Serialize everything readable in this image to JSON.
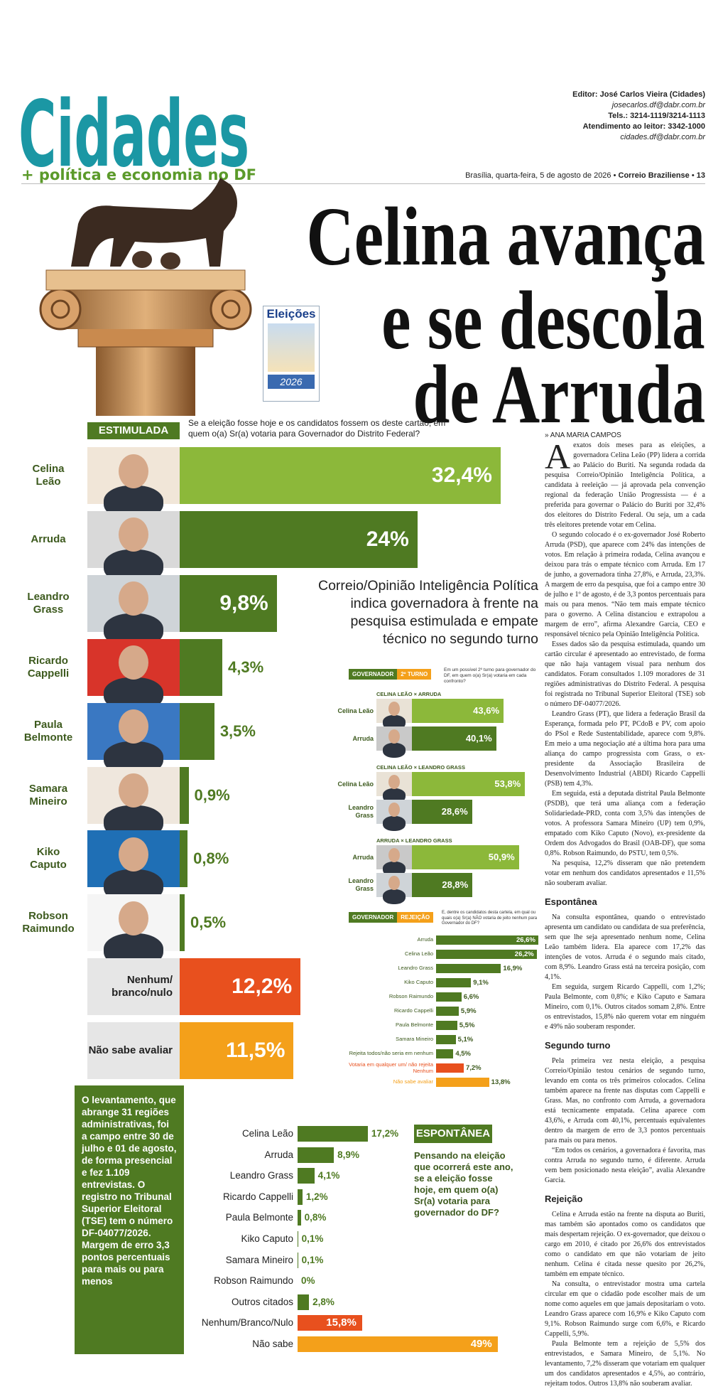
{
  "header": {
    "section": "Cidades",
    "tagline": "+ política e economia no DF",
    "editor": "Editor: José Carlos Vieira (Cidades)",
    "editor_email": "josecarlos.df@dabr.com.br",
    "phones": "Tels.: 3214-1119/3214-1113",
    "reader_service": "Atendimento ao leitor: 3342-1000",
    "contact_email": "cidades.df@dabr.com.br",
    "date": "Brasília, quarta-feira, 5 de agosto de 2026",
    "newspaper": "Correio Braziliense",
    "page": "13"
  },
  "headline": [
    "Celina avança",
    "e se descola",
    "de Arruda"
  ],
  "badge": {
    "title": "Eleições",
    "year": "2026"
  },
  "byline": "» ANA MARIA CAMPOS",
  "article": {
    "paragraphs": [
      "A exatos dois meses para as eleições, a governadora Celina Leão (PP) lidera a corrida ao Palácio do Buriti. Na segunda rodada da pesquisa Correio/Opinião Inteligência Política, a candidata à reeleição — já aprovada pela convenção regional da federação União Progressista — é a preferida para governar o Palácio do Buriti por 32,4% dos eleitores do Distrito Federal. Ou seja, um a cada três eleitores pretende votar em Celina.",
      "O segundo colocado é o ex-governador José Roberto Arruda (PSD), que aparece com 24% das intenções de votos. Em relação à primeira rodada, Celina avançou e deixou para trás o empate técnico com Arruda. Em 17 de junho, a governadora tinha 27,8%, e Arruda, 23,3%. A margem de erro da pesquisa, que foi a campo entre 30 de julho e 1º de agosto, é de 3,3 pontos percentuais para mais ou para menos. “Não tem mais empate técnico para o governo. A Celina distanciou e extrapolou a margem de erro”, afirma Alexandre Garcia, CEO e responsável técnico pela Opinião Inteligência Política.",
      "Esses dados são da pesquisa estimulada, quando um cartão circular é apresentado ao entrevistado, de forma que não haja vantagem visual para nenhum dos candidatos. Foram consultados 1.109 moradores de 31 regiões administrativas do Distrito Federal. A pesquisa foi registrada no Tribunal Superior Eleitoral (TSE) sob o número DF-04077/2026.",
      "Leandro Grass (PT), que lidera a federação Brasil da Esperança, formada pelo PT, PCdoB e PV, com apoio do PSol e Rede Sustentabilidade, aparece com 9,8%. Em meio a uma negociação até a última hora para uma aliança do campo progressista com Grass, o ex-presidente da Associação Brasileira de Desenvolvimento Industrial (ABDI) Ricardo Cappelli (PSB) tem 4,3%.",
      "Em seguida, está a deputada distrital Paula Belmonte (PSDB), que terá uma aliança com a federação Solidariedade-PRD, conta com 3,5% das intenções de votos. A professora Samara Mineiro (UP) tem 0,9%, empatado com Kiko Caputo (Novo), ex-presidente da Ordem dos Advogados do Brasil (OAB-DF), que soma 0,8%. Robson Raimundo, do PSTU, tem 0,5%.",
      "Na pesquisa, 12,2% disseram que não pretendem votar em nenhum dos candidatos apresentados e 11,5% não souberam avaliar."
    ],
    "sections": [
      {
        "heading": "Espontânea",
        "paragraphs": [
          "Na consulta espontânea, quando o entrevistado apresenta um candidato ou candidata de sua preferência, sem que lhe seja apresentado nenhum nome, Celina Leão também lidera. Ela aparece com 17,2% das intenções de votos. Arruda é o segundo mais citado, com 8,9%. Leandro Grass está na terceira posição, com 4,1%.",
          "Em seguida, surgem Ricardo Cappelli, com 1,2%; Paula Belmonte, com 0,8%; e Kiko Caputo e Samara Mineiro, com 0,1%. Outros citados somam 2,8%. Entre os entrevistados, 15,8% não querem votar em ninguém e 49% não souberam responder."
        ]
      },
      {
        "heading": "Segundo turno",
        "paragraphs": [
          "Pela primeira vez nesta eleição, a pesquisa Correio/Opinião testou cenários de segundo turno, levando em conta os três primeiros colocados. Celina também aparece na frente nas disputas com Cappelli e Grass. Mas, no confronto com Arruda, a governadora está tecnicamente empatada. Celina aparece com 43,6%, e Arruda com 40,1%, percentuais equivalentes dentro da margem de erro de 3,3 pontos percentuais para mais ou para menos.",
          "“Em todos os cenários, a governadora é favorita, mas contra Arruda no segundo turno, é diferente. Arruda vem bem posicionado nesta eleição”, avalia Alexandre Garcia."
        ]
      },
      {
        "heading": "Rejeição",
        "paragraphs": [
          "Celina e Arruda estão na frente na disputa ao Buriti, mas também são apontados como os candidatos que mais despertam rejeição. O ex-governador, que deixou o cargo em 2010, é citado por 26,6% dos entrevistados como o candidato em que não votariam de jeito nenhum. Celina é citada nesse quesito por 26,2%, também em empate técnico.",
          "Na consulta, o entrevistador mostra uma cartela circular em que o cidadão pode escolher mais de um nome como aqueles em que jamais depositariam o voto. Leandro Grass aparece com 16,9% e Kiko Caputo com 9,1%. Robson Raimundo surge com 6,6%, e Ricardo Cappelli, 5,9%.",
          "Paula Belmonte tem a rejeição de 5,5% dos entrevistados, e Samara Mineiro, de 5,1%. No levantamento, 7,2% disseram que votariam em qualquer um dos candidatos apresentados e 4,5%, ao contrário, rejeitam todos. Outros 13,8% não souberam avaliar."
        ]
      }
    ]
  },
  "methodology": "O levantamento, que abrange 31 regiões administrativas, foi a campo entre 30 de julho e 01 de agosto, de forma presencial e fez 1.109 entrevistas. O registro no Tribunal Superior Eleitoral (TSE) tem o número DF-04077/2026. Margem de erro 3,3 pontos percentuais para mais ou para menos",
  "chart_data": [
    {
      "type": "bar",
      "orientation": "horizontal",
      "title": "ESTIMULADA",
      "subtitle": "Se a eleição fosse hoje e os candidatos fossem os deste cartão, em quem o(a) Sr(a) votaria para Governador do Distrito Federal?",
      "categories": [
        "Celina Leão",
        "Arruda",
        "Leandro Grass",
        "Ricardo Cappelli",
        "Paula Belmonte",
        "Samara Mineiro",
        "Kiko Caputo",
        "Robson Raimundo",
        "Nenhum/ branco/nulo",
        "Não sabe avaliar"
      ],
      "values": [
        32.4,
        24,
        9.8,
        4.3,
        3.5,
        0.9,
        0.8,
        0.5,
        12.2,
        11.5
      ],
      "value_labels": [
        "32,4%",
        "24%",
        "9,8%",
        "4,3%",
        "3,5%",
        "0,9%",
        "0,8%",
        "0,5%",
        "12,2%",
        "11,5%"
      ],
      "colors": [
        "#8cb83a",
        "#4f7a22",
        "#4f7a22",
        "#4f7a22",
        "#4f7a22",
        "#4f7a22",
        "#4f7a22",
        "#4f7a22",
        "#e8501e",
        "#f4a01a"
      ]
    },
    {
      "type": "bar",
      "orientation": "horizontal",
      "title": "Correio/Opinião Inteligência Política indica governadora à frente na pesquisa estimulada e empate técnico no segundo turno",
      "label": "GOVERNADOR",
      "tag": "2º TURNO",
      "subtitle": "Em um possível 2º turno para governador do DF, em quem o(a) Sr(a) votaria em cada confronto?",
      "groups": [
        {
          "title": "CELINA LEÃO × ARRUDA",
          "categories": [
            "Celina Leão",
            "Arruda"
          ],
          "values": [
            43.6,
            40.1
          ],
          "value_labels": [
            "43,6%",
            "40,1%"
          ],
          "colors": [
            "#8cb83a",
            "#4f7a22"
          ]
        },
        {
          "title": "CELINA LEÃO × LEANDRO GRASS",
          "categories": [
            "Celina Leão",
            "Leandro Grass"
          ],
          "values": [
            53.8,
            28.6
          ],
          "value_labels": [
            "53,8%",
            "28,6%"
          ],
          "colors": [
            "#8cb83a",
            "#4f7a22"
          ]
        },
        {
          "title": "ARRUDA × LEANDRO GRASS",
          "categories": [
            "Arruda",
            "Leandro Grass"
          ],
          "values": [
            50.9,
            28.8
          ],
          "value_labels": [
            "50,9%",
            "28,8%"
          ],
          "colors": [
            "#8cb83a",
            "#4f7a22"
          ]
        }
      ]
    },
    {
      "type": "bar",
      "orientation": "horizontal",
      "label": "GOVERNADOR",
      "tag": "REJEIÇÃO",
      "subtitle": "E, dentre os candidatos desta cartela, em qual ou quais o(a) Sr(a) NÃO votaria de jeito nenhum para Governador do DF?",
      "categories": [
        "Arruda",
        "Celina Leão",
        "Leandro Grass",
        "Kiko Caputo",
        "Robson Raimundo",
        "Ricardo Cappelli",
        "Paula Belmonte",
        "Samara Mineiro",
        "Rejeita todos/não seria em nenhum",
        "Votaria em qualquer um/ não rejeita Nenhum",
        "Não sabe avaliar"
      ],
      "values": [
        26.6,
        26.2,
        16.9,
        9.1,
        6.6,
        5.9,
        5.5,
        5.1,
        4.5,
        7.2,
        13.8
      ],
      "value_labels": [
        "26,6%",
        "26,2%",
        "16,9%",
        "9,1%",
        "6,6%",
        "5,9%",
        "5,5%",
        "5,1%",
        "4,5%",
        "7,2%",
        "13,8%"
      ],
      "colors": [
        "#4f7a22",
        "#4f7a22",
        "#4f7a22",
        "#4f7a22",
        "#4f7a22",
        "#4f7a22",
        "#4f7a22",
        "#4f7a22",
        "#4f7a22",
        "#e8501e",
        "#f4a01a"
      ]
    },
    {
      "type": "bar",
      "orientation": "horizontal",
      "title": "ESPONTÂNEA",
      "subtitle": "Pensando na eleição que ocorrerá este ano, se a eleição fosse hoje, em quem o(a) Sr(a) votaria para governador do DF?",
      "categories": [
        "Celina Leão",
        "Arruda",
        "Leandro Grass",
        "Ricardo Cappelli",
        "Paula Belmonte",
        "Kiko Caputo",
        "Samara Mineiro",
        "Robson Raimundo",
        "Outros citados",
        "Nenhum/Branco/Nulo",
        "Não sabe"
      ],
      "values": [
        17.2,
        8.9,
        4.1,
        1.2,
        0.8,
        0.1,
        0.1,
        0,
        2.8,
        15.8,
        49
      ],
      "value_labels": [
        "17,2%",
        "8,9%",
        "4,1%",
        "1,2%",
        "0,8%",
        "0,1%",
        "0,1%",
        "0%",
        "2,8%",
        "15,8%",
        "49%"
      ],
      "colors": [
        "#4f7a22",
        "#4f7a22",
        "#4f7a22",
        "#4f7a22",
        "#4f7a22",
        "#4f7a22",
        "#4f7a22",
        "#4f7a22",
        "#4f7a22",
        "#e8501e",
        "#f4a01a"
      ]
    }
  ]
}
